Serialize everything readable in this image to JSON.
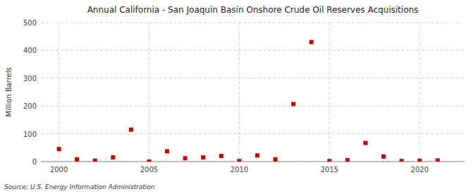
{
  "chart_data": {
    "type": "scatter",
    "title": "Annual California - San Joaquin Basin Onshore Crude Oil Reserves Acquisitions",
    "ylabel": "Million Barrels",
    "source": "Source: U.S. Energy Information Administration",
    "x": [
      2000,
      2001,
      2002,
      2003,
      2004,
      2005,
      2006,
      2007,
      2008,
      2009,
      2010,
      2011,
      2012,
      2013,
      2014,
      2015,
      2016,
      2017,
      2018,
      2019,
      2020,
      2021
    ],
    "values": [
      45,
      8,
      3,
      15,
      115,
      0,
      37,
      12,
      15,
      20,
      2,
      22,
      8,
      207,
      430,
      2,
      5,
      67,
      18,
      2,
      3,
      4
    ],
    "color": "#cc0000",
    "marker": "square",
    "xlim": [
      1999,
      2022.5
    ],
    "ylim": [
      0,
      500
    ],
    "xticks": [
      2000,
      2005,
      2010,
      2015,
      2020
    ],
    "yticks": [
      0,
      100,
      200,
      300,
      400,
      500
    ],
    "grid": true
  }
}
